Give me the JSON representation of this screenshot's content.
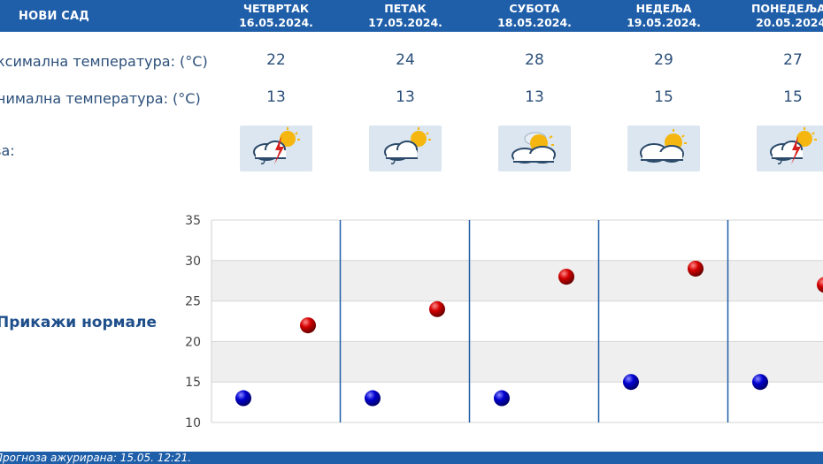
{
  "header": {
    "city": "НОВИ САД"
  },
  "days": [
    {
      "name": "ЧЕТВРТАК",
      "date": "16.05.2024.",
      "max": "22",
      "min": "13",
      "icon": "partly-cloudy-thunder-icon"
    },
    {
      "name": "ПЕТАК",
      "date": "17.05.2024.",
      "max": "24",
      "min": "13",
      "icon": "partly-cloudy-rain-icon"
    },
    {
      "name": "СУБОТА",
      "date": "18.05.2024.",
      "max": "28",
      "min": "13",
      "icon": "partly-cloudy-icon"
    },
    {
      "name": "НЕДЕЉА",
      "date": "19.05.2024.",
      "max": "29",
      "min": "15",
      "icon": "mostly-cloudy-icon"
    },
    {
      "name": "ПОНЕДЕЉАК",
      "date": "20.05.2024.",
      "max": "27",
      "min": "15",
      "icon": "partly-cloudy-thunder-icon"
    }
  ],
  "rows": {
    "max_label": "ксимална температура: (°C)",
    "min_label": "нимална температура: (°C)",
    "icon_label": "Појава:"
  },
  "normals_label": "Прикажи нормале",
  "footer": {
    "updated": "Прогноза ажурирана:  15.05. 12:21."
  },
  "colors": {
    "header": "#1f5ea8",
    "max_dot": "#cc0000",
    "min_dot": "#0000cc",
    "divider": "#1f5ea8"
  },
  "chart_data": {
    "type": "scatter",
    "categories": [
      "16.05.2024.",
      "17.05.2024.",
      "18.05.2024.",
      "19.05.2024.",
      "20.05.2024."
    ],
    "ylim": [
      10,
      35
    ],
    "yticks": [
      10,
      15,
      20,
      25,
      30,
      35
    ],
    "grid": true,
    "series": [
      {
        "name": "max",
        "values": [
          22,
          24,
          28,
          29,
          27
        ]
      },
      {
        "name": "min",
        "values": [
          13,
          13,
          13,
          15,
          15
        ]
      }
    ]
  }
}
